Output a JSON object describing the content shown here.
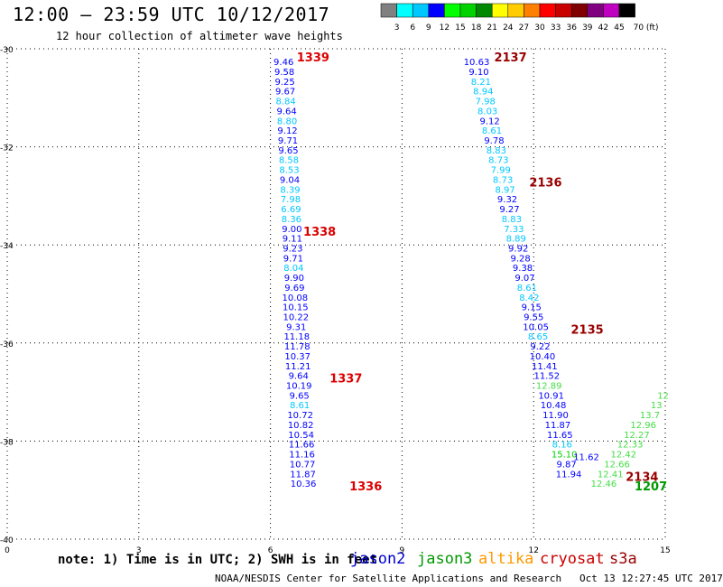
{
  "header": {
    "title": "12:00 – 23:59 UTC 10/12/2017",
    "subtitle": "12 hour collection of altimeter wave heights"
  },
  "color_scale": {
    "unit_label": "(ft)",
    "bins": [
      {
        "label": "3",
        "color": "#808080"
      },
      {
        "label": "6",
        "color": "#00ffff"
      },
      {
        "label": "9",
        "color": "#00c8ff"
      },
      {
        "label": "12",
        "color": "#0000ff"
      },
      {
        "label": "15",
        "color": "#00ff00"
      },
      {
        "label": "18",
        "color": "#00d200"
      },
      {
        "label": "21",
        "color": "#008800"
      },
      {
        "label": "24",
        "color": "#ffff00"
      },
      {
        "label": "27",
        "color": "#ffcc00"
      },
      {
        "label": "30",
        "color": "#ff8000"
      },
      {
        "label": "33",
        "color": "#ff0000"
      },
      {
        "label": "36",
        "color": "#c80000"
      },
      {
        "label": "39",
        "color": "#800000"
      },
      {
        "label": "42",
        "color": "#800080"
      },
      {
        "label": "45",
        "color": "#c000c0"
      },
      {
        "label": "70",
        "color": "#000000"
      }
    ]
  },
  "chart_data": {
    "type": "scatter",
    "title": "12:00 – 23:59 UTC 10/12/2017",
    "subtitle": "12 hour collection of altimeter wave heights",
    "xlim": [
      0,
      15
    ],
    "ylim": [
      -40,
      -30
    ],
    "xticks": [
      "0",
      "3",
      "6",
      "9",
      "12",
      "15"
    ],
    "yticks": [
      "-30",
      "-32",
      "-34",
      "-36",
      "-38",
      "-40"
    ],
    "grid": true,
    "series": [
      {
        "name": "jason2",
        "color": "#0000ff",
        "points": [
          {
            "x": 6.3,
            "y": -30.15,
            "v": "9.46"
          },
          {
            "x": 6.32,
            "y": -30.35,
            "v": "9.58"
          },
          {
            "x": 6.33,
            "y": -30.55,
            "v": "9.25"
          },
          {
            "x": 6.34,
            "y": -30.75,
            "v": "9.67"
          },
          {
            "x": 6.35,
            "y": -30.95,
            "v": "8.84"
          },
          {
            "x": 6.37,
            "y": -31.15,
            "v": "9.64"
          },
          {
            "x": 6.38,
            "y": -31.35,
            "v": "8.80"
          },
          {
            "x": 6.39,
            "y": -31.55,
            "v": "9.12"
          },
          {
            "x": 6.4,
            "y": -31.75,
            "v": "9.71"
          },
          {
            "x": 6.41,
            "y": -31.95,
            "v": "9.65"
          },
          {
            "x": 6.42,
            "y": -32.15,
            "v": "8.58"
          },
          {
            "x": 6.43,
            "y": -32.35,
            "v": "8.53"
          },
          {
            "x": 6.44,
            "y": -32.55,
            "v": "9.04"
          },
          {
            "x": 6.45,
            "y": -32.75,
            "v": "8.39"
          },
          {
            "x": 6.46,
            "y": -32.95,
            "v": "7.98"
          },
          {
            "x": 6.47,
            "y": -33.15,
            "v": "6.69"
          },
          {
            "x": 6.48,
            "y": -33.35,
            "v": "8.36"
          },
          {
            "x": 6.49,
            "y": -33.55,
            "v": "9.00"
          },
          {
            "x": 6.5,
            "y": -33.75,
            "v": "9.11"
          },
          {
            "x": 6.51,
            "y": -33.95,
            "v": "9.23"
          },
          {
            "x": 6.52,
            "y": -34.15,
            "v": "9.71"
          },
          {
            "x": 6.53,
            "y": -34.35,
            "v": "8.04"
          },
          {
            "x": 6.54,
            "y": -34.55,
            "v": "9.90"
          },
          {
            "x": 6.55,
            "y": -34.75,
            "v": "9.69"
          },
          {
            "x": 6.56,
            "y": -34.95,
            "v": "10.08"
          },
          {
            "x": 6.57,
            "y": -35.15,
            "v": "10.15"
          },
          {
            "x": 6.58,
            "y": -35.35,
            "v": "10.22"
          },
          {
            "x": 6.59,
            "y": -35.55,
            "v": "9.31"
          },
          {
            "x": 6.6,
            "y": -35.75,
            "v": "11.18"
          },
          {
            "x": 6.61,
            "y": -35.95,
            "v": "11.78"
          },
          {
            "x": 6.62,
            "y": -36.15,
            "v": "10.37"
          },
          {
            "x": 6.63,
            "y": -36.35,
            "v": "11.21"
          },
          {
            "x": 6.64,
            "y": -36.55,
            "v": "9.64"
          },
          {
            "x": 6.65,
            "y": -36.75,
            "v": "10.19"
          },
          {
            "x": 6.66,
            "y": -36.95,
            "v": "9.65"
          },
          {
            "x": 6.67,
            "y": -37.15,
            "v": "8.61"
          },
          {
            "x": 6.68,
            "y": -37.35,
            "v": "10.72"
          },
          {
            "x": 6.69,
            "y": -37.55,
            "v": "10.82"
          },
          {
            "x": 6.7,
            "y": -37.75,
            "v": "10.54"
          },
          {
            "x": 6.71,
            "y": -37.95,
            "v": "11.66"
          },
          {
            "x": 6.72,
            "y": -38.15,
            "v": "11.16"
          },
          {
            "x": 6.73,
            "y": -38.35,
            "v": "10.77"
          },
          {
            "x": 6.74,
            "y": -38.55,
            "v": "11.87"
          },
          {
            "x": 6.75,
            "y": -38.75,
            "v": "10.36"
          },
          {
            "x": 10.7,
            "y": -30.15,
            "v": "10.63"
          },
          {
            "x": 10.75,
            "y": -30.35,
            "v": "9.10"
          },
          {
            "x": 10.8,
            "y": -30.55,
            "v": "8.21"
          },
          {
            "x": 10.85,
            "y": -30.75,
            "v": "8.94"
          },
          {
            "x": 10.9,
            "y": -30.95,
            "v": "7.98"
          },
          {
            "x": 10.95,
            "y": -31.15,
            "v": "8.03"
          },
          {
            "x": 11.0,
            "y": -31.35,
            "v": "9.12"
          },
          {
            "x": 11.05,
            "y": -31.55,
            "v": "8.61"
          },
          {
            "x": 11.1,
            "y": -31.75,
            "v": "9.78"
          },
          {
            "x": 11.15,
            "y": -31.95,
            "v": "8.83"
          },
          {
            "x": 11.2,
            "y": -32.15,
            "v": "8.73"
          },
          {
            "x": 11.25,
            "y": -32.35,
            "v": "7.99"
          },
          {
            "x": 11.3,
            "y": -32.55,
            "v": "8.73"
          },
          {
            "x": 11.35,
            "y": -32.75,
            "v": "8.97"
          },
          {
            "x": 11.4,
            "y": -32.95,
            "v": "9.32"
          },
          {
            "x": 11.45,
            "y": -33.15,
            "v": "9.27"
          },
          {
            "x": 11.5,
            "y": -33.35,
            "v": "8.83"
          },
          {
            "x": 11.55,
            "y": -33.55,
            "v": "7.33"
          },
          {
            "x": 11.6,
            "y": -33.75,
            "v": "8.89"
          },
          {
            "x": 11.65,
            "y": -33.95,
            "v": "9.92"
          },
          {
            "x": 11.7,
            "y": -34.15,
            "v": "9.28"
          },
          {
            "x": 11.75,
            "y": -34.35,
            "v": "9.38"
          },
          {
            "x": 11.8,
            "y": -34.55,
            "v": "9.07"
          },
          {
            "x": 11.85,
            "y": -34.75,
            "v": "8.61"
          },
          {
            "x": 11.9,
            "y": -34.95,
            "v": "8.42"
          },
          {
            "x": 11.95,
            "y": -35.15,
            "v": "9.15"
          },
          {
            "x": 12.0,
            "y": -35.35,
            "v": "9.55"
          },
          {
            "x": 12.05,
            "y": -35.55,
            "v": "10.05"
          },
          {
            "x": 12.1,
            "y": -35.75,
            "v": "8.65"
          },
          {
            "x": 12.15,
            "y": -35.95,
            "v": "9.22"
          },
          {
            "x": 12.2,
            "y": -36.15,
            "v": "10.40"
          },
          {
            "x": 12.25,
            "y": -36.35,
            "v": "11.41"
          },
          {
            "x": 12.3,
            "y": -36.55,
            "v": "11.52"
          },
          {
            "x": 12.35,
            "y": -36.75,
            "v": "12.89"
          },
          {
            "x": 12.4,
            "y": -36.95,
            "v": "10.91"
          },
          {
            "x": 12.45,
            "y": -37.15,
            "v": "10.48"
          },
          {
            "x": 12.5,
            "y": -37.35,
            "v": "11.90"
          },
          {
            "x": 12.55,
            "y": -37.55,
            "v": "11.87"
          },
          {
            "x": 12.6,
            "y": -37.75,
            "v": "11.65"
          },
          {
            "x": 12.65,
            "y": -37.95,
            "v": "8.16"
          },
          {
            "x": 12.7,
            "y": -38.15,
            "v": "15.10"
          },
          {
            "x": 12.75,
            "y": -38.35,
            "v": "9.87"
          },
          {
            "x": 12.8,
            "y": -38.55,
            "v": "11.94"
          },
          {
            "x": 13.2,
            "y": -38.2,
            "v": "11.62"
          }
        ]
      },
      {
        "name": "jason3",
        "color": "#00aa00",
        "points": [
          {
            "x": 14.95,
            "y": -36.95,
            "v": "12"
          },
          {
            "x": 14.8,
            "y": -37.15,
            "v": "13"
          },
          {
            "x": 14.65,
            "y": -37.35,
            "v": "13.7"
          },
          {
            "x": 14.5,
            "y": -37.55,
            "v": "12.96"
          },
          {
            "x": 14.35,
            "y": -37.75,
            "v": "12.27"
          },
          {
            "x": 14.2,
            "y": -37.95,
            "v": "12.33"
          },
          {
            "x": 14.05,
            "y": -38.15,
            "v": "12.42"
          },
          {
            "x": 13.9,
            "y": -38.35,
            "v": "12.66"
          },
          {
            "x": 13.75,
            "y": -38.55,
            "v": "12.41"
          },
          {
            "x": 13.6,
            "y": -38.75,
            "v": "12.46"
          }
        ]
      }
    ],
    "time_labels": [
      {
        "x": 6.6,
        "y": -30.0,
        "v": "1339",
        "sat": "jason2"
      },
      {
        "x": 6.75,
        "y": -33.55,
        "v": "1338",
        "sat": "jason2"
      },
      {
        "x": 7.35,
        "y": -36.55,
        "v": "1337",
        "sat": "jason2"
      },
      {
        "x": 7.8,
        "y": -38.75,
        "v": "1336",
        "sat": "jason2"
      },
      {
        "x": 11.1,
        "y": -30.0,
        "v": "2137",
        "sat": "cryosat"
      },
      {
        "x": 11.9,
        "y": -32.55,
        "v": "2136",
        "sat": "cryosat"
      },
      {
        "x": 12.85,
        "y": -35.55,
        "v": "2135",
        "sat": "cryosat"
      },
      {
        "x": 14.1,
        "y": -38.55,
        "v": "2134",
        "sat": "cryosat"
      },
      {
        "x": 14.3,
        "y": -38.75,
        "v": "1207",
        "sat": "jason3"
      }
    ]
  },
  "legend": {
    "note": "note: 1) Time is in UTC; 2) SWH is in feet",
    "satellites": [
      {
        "label": "jason2",
        "color": "#0000cc"
      },
      {
        "label": "jason3",
        "color": "#009900"
      },
      {
        "label": "altika",
        "color": "#ff9900"
      },
      {
        "label": "cryosat",
        "color": "#cc0000"
      },
      {
        "label": "s3a",
        "color": "#990000"
      }
    ]
  },
  "footer": {
    "credit": "NOAA/NESDIS Center for Satellite Applications and Research",
    "timestamp": "Oct 13 12:27:45 UTC 2017"
  }
}
